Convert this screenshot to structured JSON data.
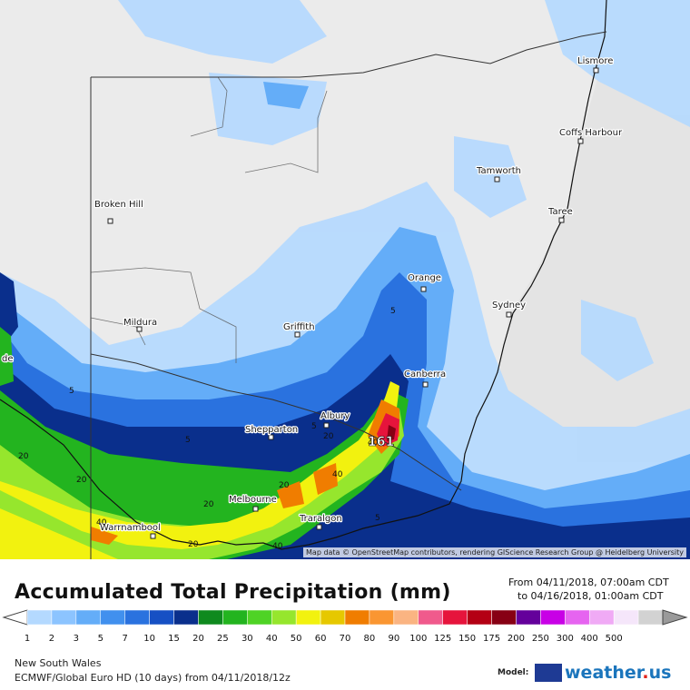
{
  "map": {
    "region": "New South Wales",
    "attribution": "Map data © OpenStreetMap contributors, rendering GIScience Research Group @ Heidelberg University",
    "max_value_label": "161",
    "cities": [
      {
        "name": "Lismore"
      },
      {
        "name": "Coffs Harbour"
      },
      {
        "name": "Tamworth"
      },
      {
        "name": "Taree"
      },
      {
        "name": "Broken Hill"
      },
      {
        "name": "Orange"
      },
      {
        "name": "Sydney"
      },
      {
        "name": "Mildura"
      },
      {
        "name": "Griffith"
      },
      {
        "name": "Canberra"
      },
      {
        "name": "Albury"
      },
      {
        "name": "Shepparton"
      },
      {
        "name": "Melbourne"
      },
      {
        "name": "Warrnambool"
      },
      {
        "name": "Traralgon"
      }
    ],
    "contour_labels": [
      "5",
      "5",
      "5",
      "20",
      "20",
      "20",
      "20",
      "40",
      "40",
      "40",
      "40",
      "5",
      "20",
      "5",
      "20"
    ],
    "edge_label": "de"
  },
  "header": {
    "title": "Accumulated Total Precipitation (mm)",
    "from": "From 04/11/2018, 07:00am CDT",
    "to": "to 04/16/2018, 01:00am CDT"
  },
  "legend": {
    "values": [
      "1",
      "2",
      "3",
      "5",
      "7",
      "10",
      "15",
      "20",
      "25",
      "30",
      "40",
      "50",
      "60",
      "70",
      "80",
      "90",
      "100",
      "125",
      "150",
      "175",
      "200",
      "250",
      "300",
      "400",
      "500"
    ],
    "colors": [
      "#b4d9ff",
      "#8cc4ff",
      "#64adf8",
      "#4190ee",
      "#2a72df",
      "#1650c4",
      "#0a2f8c",
      "#0f8a1e",
      "#23b41f",
      "#4fd325",
      "#96e62d",
      "#f2f20f",
      "#e6c800",
      "#f07d00",
      "#fa9632",
      "#fab482",
      "#f05a8c",
      "#e6143c",
      "#b40014",
      "#870014",
      "#64009b",
      "#c800e6",
      "#e664f0",
      "#f0aaf5",
      "#f5e6fa",
      "#d2d2d2"
    ]
  },
  "footer": {
    "region": "New South Wales",
    "model_line": "ECMWF/Global Euro HD (10 days) from 04/11/2018/12z",
    "model_label": "Model:",
    "brand": "weather",
    "brand_dot": ".",
    "brand_tld": "us"
  }
}
